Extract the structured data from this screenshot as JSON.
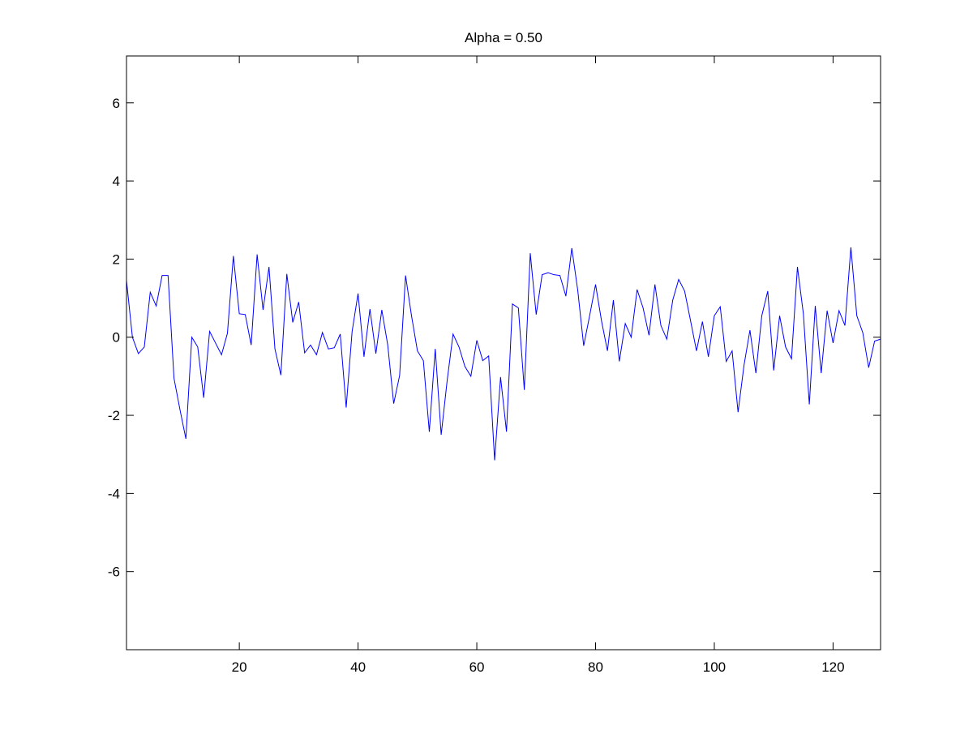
{
  "chart_data": {
    "type": "line",
    "title": "Alpha = 0.50",
    "xlabel": "",
    "ylabel": "",
    "xlim": [
      1,
      128
    ],
    "ylim": [
      -8,
      7.2
    ],
    "xticks": [
      20,
      40,
      60,
      80,
      100,
      120
    ],
    "yticks": [
      -6,
      -4,
      -2,
      0,
      2,
      4,
      6
    ],
    "xtick_labels": [
      "20",
      "40",
      "60",
      "80",
      "100",
      "120"
    ],
    "ytick_labels": [
      "-6",
      "-4",
      "-2",
      "0",
      "2",
      "4",
      "6"
    ],
    "grid": false,
    "legend": "none",
    "colors": {
      "line": "#0000ff",
      "axes": "#000000",
      "background": "#ffffff"
    },
    "series": [
      {
        "x": [
          1,
          2,
          3,
          4,
          5,
          6,
          7,
          8,
          9,
          10,
          11,
          12,
          13,
          14,
          15,
          16,
          17,
          18,
          19,
          20,
          21,
          22,
          23,
          24,
          25,
          26,
          27,
          28,
          29,
          30,
          31,
          32,
          33,
          34,
          35,
          36,
          37,
          38,
          39,
          40,
          41,
          42,
          43,
          44,
          45,
          46,
          47,
          48,
          49,
          50,
          51,
          52,
          53,
          54,
          55,
          56,
          57,
          58,
          59,
          60,
          61,
          62,
          63,
          64,
          65,
          66,
          67,
          68,
          69,
          70,
          71,
          72,
          73,
          74,
          75,
          76,
          77,
          78,
          79,
          80,
          81,
          82,
          83,
          84,
          85,
          86,
          87,
          88,
          89,
          90,
          91,
          92,
          93,
          94,
          95,
          96,
          97,
          98,
          99,
          100,
          101,
          102,
          103,
          104,
          105,
          106,
          107,
          108,
          109,
          110,
          111,
          112,
          113,
          114,
          115,
          116,
          117,
          118,
          119,
          120,
          121,
          122,
          123,
          124,
          125,
          126,
          127,
          128
        ],
        "values": [
          1.45,
          0.0,
          -0.42,
          -0.25,
          1.15,
          0.8,
          1.58,
          1.58,
          -1.05,
          -1.85,
          -2.6,
          0.0,
          -0.25,
          -1.55,
          0.15,
          -0.15,
          -0.45,
          0.1,
          2.08,
          0.6,
          0.58,
          -0.2,
          2.12,
          0.7,
          1.8,
          -0.3,
          -0.97,
          1.62,
          0.38,
          0.9,
          -0.4,
          -0.2,
          -0.45,
          0.12,
          -0.3,
          -0.27,
          0.08,
          -1.8,
          0.15,
          1.12,
          -0.5,
          0.72,
          -0.42,
          0.7,
          -0.2,
          -1.7,
          -0.98,
          1.58,
          0.55,
          -0.35,
          -0.6,
          -2.42,
          -0.3,
          -2.5,
          -1.12,
          0.08,
          -0.25,
          -0.75,
          -1.0,
          -0.08,
          -0.6,
          -0.48,
          -3.15,
          -1.02,
          -2.42,
          0.85,
          0.75,
          -1.35,
          2.15,
          0.58,
          1.6,
          1.65,
          1.6,
          1.58,
          1.05,
          2.28,
          1.2,
          -0.22,
          0.55,
          1.35,
          0.42,
          -0.35,
          0.95,
          -0.62,
          0.35,
          0.0,
          1.22,
          0.75,
          0.05,
          1.35,
          0.3,
          -0.05,
          0.95,
          1.48,
          1.18,
          0.42,
          -0.35,
          0.4,
          -0.5,
          0.55,
          0.78,
          -0.62,
          -0.35,
          -1.92,
          -0.72,
          0.18,
          -0.92,
          0.55,
          1.18,
          -0.85,
          0.55,
          -0.25,
          -0.55,
          1.8,
          0.6,
          -1.72,
          0.8,
          -0.92,
          0.68,
          -0.15,
          0.68,
          0.3,
          2.3,
          0.55,
          0.12,
          -0.78,
          -0.1,
          -0.05
        ]
      }
    ]
  }
}
